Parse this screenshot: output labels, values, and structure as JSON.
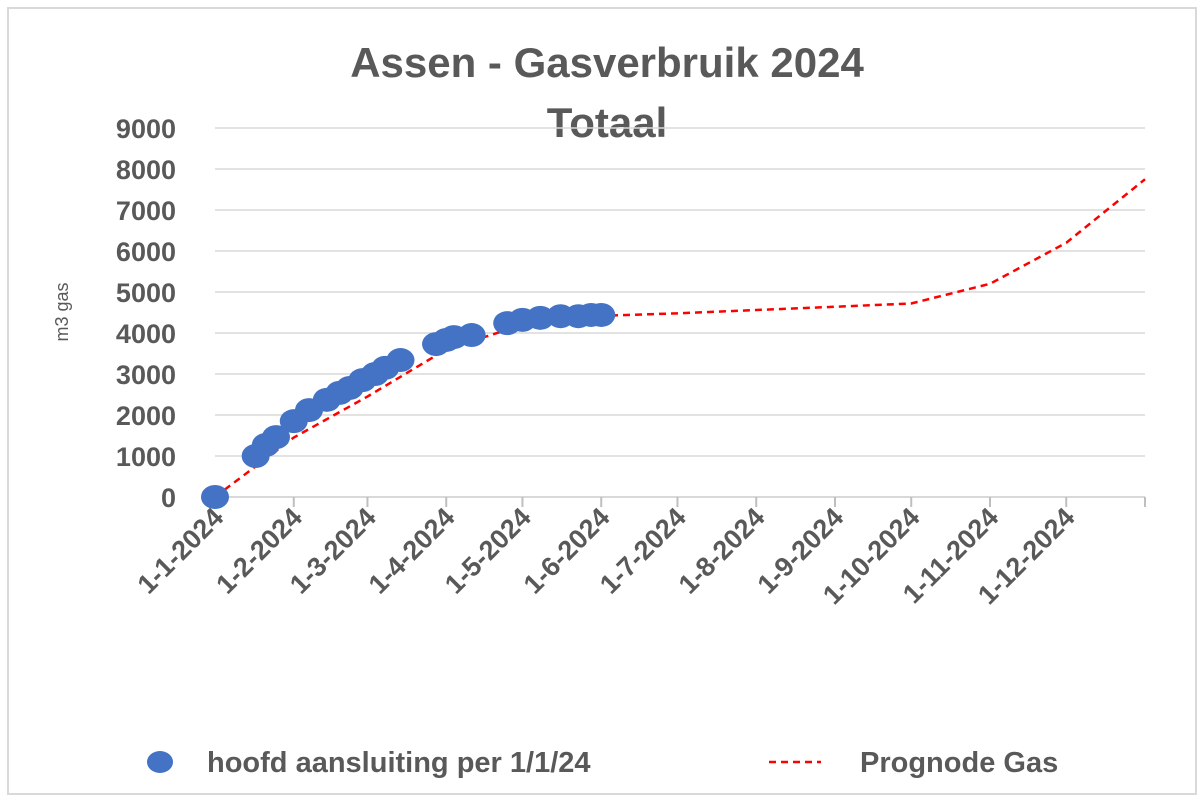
{
  "chart_data": {
    "type": "scatter-line",
    "title": "Assen - Gasverbruik 2024",
    "subtitle": "Totaal",
    "y_label": "m3 gas",
    "xlim": [
      "2024-01-01",
      "2025-01-01"
    ],
    "xticks": [
      {
        "value": "2024-01-01",
        "label": "1-1-2024"
      },
      {
        "value": "2024-02-01",
        "label": "1-2-2024"
      },
      {
        "value": "2024-03-01",
        "label": "1-3-2024"
      },
      {
        "value": "2024-04-01",
        "label": "1-4-2024"
      },
      {
        "value": "2024-05-01",
        "label": "1-5-2024"
      },
      {
        "value": "2024-06-01",
        "label": "1-6-2024"
      },
      {
        "value": "2024-07-01",
        "label": "1-7-2024"
      },
      {
        "value": "2024-08-01",
        "label": "1-8-2024"
      },
      {
        "value": "2024-09-01",
        "label": "1-9-2024"
      },
      {
        "value": "2024-10-01",
        "label": "1-10-2024"
      },
      {
        "value": "2024-11-01",
        "label": "1-11-2024"
      },
      {
        "value": "2024-12-01",
        "label": "1-12-2024"
      }
    ],
    "ylim": [
      0,
      9000
    ],
    "yticks": [
      0,
      1000,
      2000,
      3000,
      4000,
      5000,
      6000,
      7000,
      8000,
      9000
    ],
    "grid": true,
    "legend": "bottom",
    "series": [
      {
        "name": "hoofd aansluiting per 1/1/24",
        "kind": "scatter",
        "color": "#4472c4",
        "x": [
          "2024-01-01",
          "2024-01-17",
          "2024-01-21",
          "2024-01-25",
          "2024-02-01",
          "2024-02-07",
          "2024-02-14",
          "2024-02-19",
          "2024-02-23",
          "2024-02-28",
          "2024-03-04",
          "2024-03-08",
          "2024-03-14",
          "2024-03-28",
          "2024-04-01",
          "2024-04-04",
          "2024-04-11",
          "2024-04-25",
          "2024-05-01",
          "2024-05-08",
          "2024-05-16",
          "2024-05-23",
          "2024-05-28",
          "2024-06-01"
        ],
        "values": [
          0,
          1000,
          1270,
          1460,
          1850,
          2120,
          2370,
          2540,
          2660,
          2850,
          3000,
          3150,
          3340,
          3730,
          3830,
          3900,
          3950,
          4240,
          4320,
          4370,
          4410,
          4410,
          4440,
          4440
        ]
      },
      {
        "name": "Prognode Gas",
        "kind": "line",
        "color": "#ff0000",
        "dashed": true,
        "x": [
          "2024-01-01",
          "2024-02-01",
          "2024-03-01",
          "2024-04-01",
          "2024-05-01",
          "2024-06-01",
          "2024-07-01",
          "2024-08-01",
          "2024-09-01",
          "2024-10-01",
          "2024-11-01",
          "2024-12-01",
          "2025-01-01"
        ],
        "values": [
          0,
          1450,
          2450,
          3600,
          4200,
          4420,
          4480,
          4560,
          4640,
          4720,
          5200,
          6200,
          7750
        ]
      }
    ]
  }
}
